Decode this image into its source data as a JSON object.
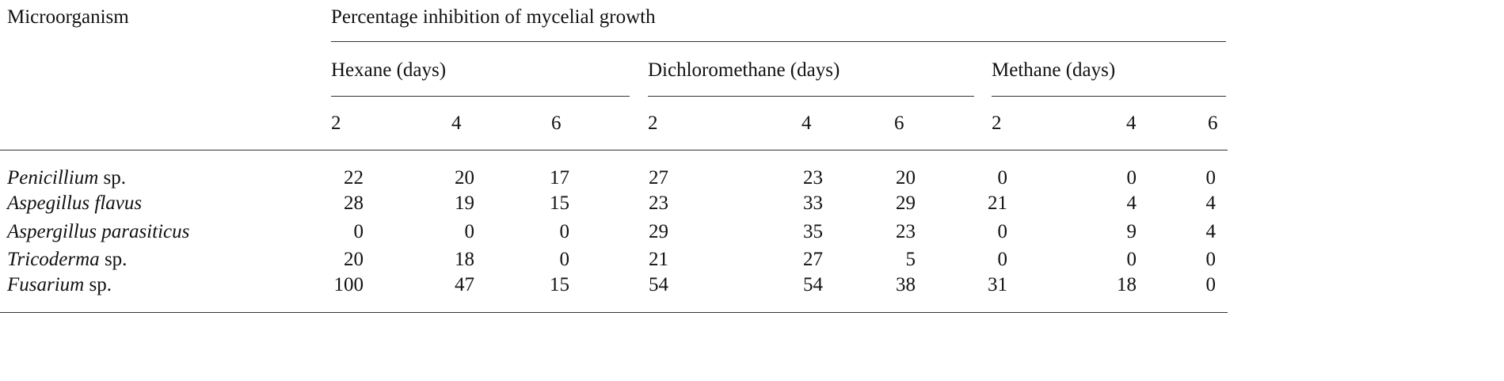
{
  "table": {
    "header": {
      "row_label": "Microorganism",
      "group_title": "Percentage inhibition of mycelial growth",
      "solvents": [
        {
          "label": "Hexane (days)",
          "days": [
            "2",
            "4",
            "6"
          ]
        },
        {
          "label": "Dichloromethane (days)",
          "days": [
            "2",
            "4",
            "6"
          ]
        },
        {
          "label": "Methane (days)",
          "days": [
            "2",
            "4",
            "6"
          ]
        }
      ]
    },
    "rows": [
      {
        "genus": "Penicillium",
        "suffix": " sp.",
        "values": [
          "22",
          "20",
          "17",
          "27",
          "23",
          "20",
          "0",
          "0",
          "0"
        ]
      },
      {
        "genus": "Aspegillus flavus",
        "suffix": "",
        "values": [
          "28",
          "19",
          "15",
          "23",
          "33",
          "29",
          "21",
          "4",
          "4"
        ]
      },
      {
        "genus": "Aspergillus parasiticus",
        "suffix": "",
        "values": [
          "0",
          "0",
          "0",
          "29",
          "35",
          "23",
          "0",
          "9",
          "4"
        ]
      },
      {
        "genus": "Tricoderma",
        "suffix": " sp.",
        "values": [
          "20",
          "18",
          "0",
          "21",
          "27",
          "5",
          "0",
          "0",
          "0"
        ]
      },
      {
        "genus": "Fusarium",
        "suffix": " sp.",
        "values": [
          "100",
          "47",
          "15",
          "54",
          "54",
          "38",
          "31",
          "18",
          "0"
        ]
      }
    ]
  }
}
